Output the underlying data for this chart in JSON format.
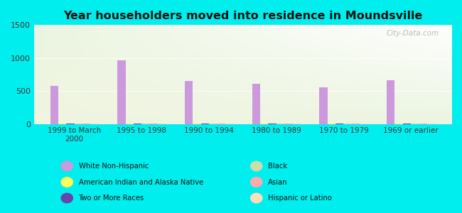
{
  "title": "Year householders moved into residence in Moundsville",
  "categories": [
    "1999 to March\n2000",
    "1995 to 1998",
    "1990 to 1994",
    "1980 to 1989",
    "1970 to 1979",
    "1969 or earlier"
  ],
  "series": {
    "White Non-Hispanic": [
      575,
      960,
      650,
      610,
      555,
      665
    ],
    "American Indian and Alaska Native": [
      5,
      5,
      5,
      5,
      5,
      5
    ],
    "Two or More Races": [
      5,
      5,
      5,
      5,
      5,
      5
    ],
    "Black": [
      5,
      5,
      5,
      5,
      5,
      5
    ],
    "Asian": [
      5,
      5,
      5,
      5,
      5,
      5
    ],
    "Hispanic or Latino": [
      8,
      8,
      8,
      8,
      8,
      8
    ]
  },
  "colors": {
    "White Non-Hispanic": "#cc99dd",
    "American Indian and Alaska Native": "#ffff55",
    "Two or More Races": "#6644aa",
    "Black": "#ccddaa",
    "Asian": "#ffaaaa",
    "Hispanic or Latino": "#ffddbb"
  },
  "ylim": [
    0,
    1500
  ],
  "yticks": [
    0,
    500,
    1000,
    1500
  ],
  "background_color": "#00eeee",
  "watermark": "City-Data.com",
  "bar_width": 0.12
}
